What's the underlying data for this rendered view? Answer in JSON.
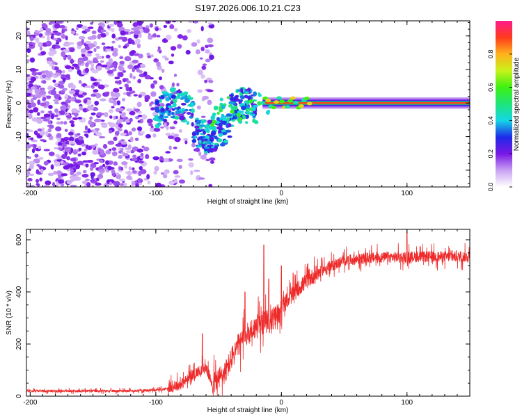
{
  "figure_title": "S197.2026.006.10.21.C23",
  "chart_data": [
    {
      "type": "heatmap",
      "name": "spectrogram",
      "xlabel": "Height of straight line (km)",
      "ylabel": "Frequency (Hz)",
      "xlim": [
        -203,
        150
      ],
      "ylim": [
        -25,
        24.5
      ],
      "xticks": [
        -200,
        -100,
        0,
        100
      ],
      "yticks": [
        -20,
        -10,
        0,
        10,
        20
      ],
      "colorbar": {
        "label": "Normalized spectral amplitude",
        "range": [
          0.0,
          1.0
        ],
        "ticks": [
          0.0,
          0.2,
          0.4,
          0.6,
          0.8
        ]
      },
      "features": [
        {
          "description": "scattered noise",
          "x_range": [
            -203,
            -55
          ],
          "freq_range": [
            -25,
            24.5
          ],
          "amplitude": 0.1
        },
        {
          "description": "wandering signal",
          "x_range": [
            -100,
            -20
          ],
          "freq_center": -3,
          "amplitude": 0.3
        },
        {
          "description": "stable carrier",
          "x_range": [
            -15,
            150
          ],
          "freq_center": 0,
          "amplitude": 0.9
        }
      ]
    },
    {
      "type": "line",
      "name": "snr",
      "xlabel": "Height of straight line (km)",
      "ylabel": "SNR (10 * v/v)",
      "xlim": [
        -203,
        150
      ],
      "ylim": [
        0,
        640
      ],
      "xticks": [
        -200,
        -100,
        0,
        100
      ],
      "yticks": [
        0,
        200,
        400,
        600
      ],
      "color": "#ee2a2a",
      "baseline": [
        [
          -203,
          20
        ],
        [
          -120,
          20
        ],
        [
          -95,
          25
        ],
        [
          -80,
          45
        ],
        [
          -68,
          90
        ],
        [
          -60,
          110
        ],
        [
          -55,
          45
        ],
        [
          -45,
          90
        ],
        [
          -35,
          190
        ],
        [
          -25,
          250
        ],
        [
          -15,
          280
        ],
        [
          -5,
          300
        ],
        [
          5,
          370
        ],
        [
          15,
          420
        ],
        [
          25,
          460
        ],
        [
          35,
          490
        ],
        [
          50,
          520
        ],
        [
          70,
          530
        ],
        [
          100,
          535
        ],
        [
          150,
          535
        ]
      ],
      "spikes": [
        [
          -63,
          240
        ],
        [
          -29,
          400
        ],
        [
          -14,
          580
        ],
        [
          -10,
          450
        ],
        [
          0,
          500
        ],
        [
          100,
          630
        ]
      ]
    }
  ]
}
